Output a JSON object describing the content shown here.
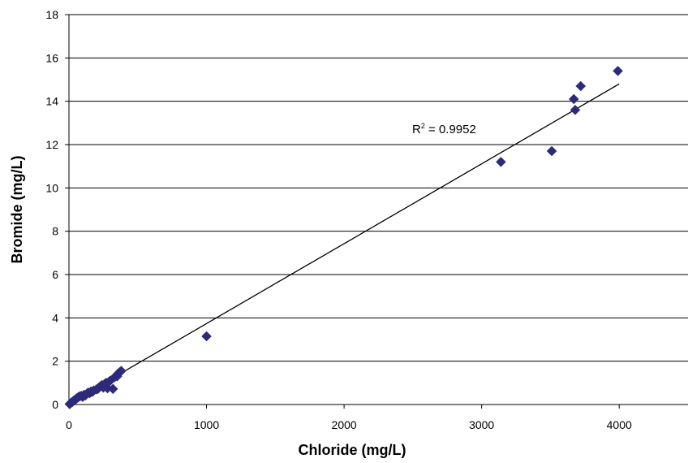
{
  "chart_data": {
    "type": "scatter",
    "title": "",
    "xlabel": "Chloride (mg/L)",
    "ylabel": "Bromide (mg/L)",
    "xlim": [
      0,
      4500
    ],
    "ylim": [
      0,
      18
    ],
    "xticks": [
      0,
      1000,
      2000,
      3000,
      4000
    ],
    "yticks": [
      0,
      2,
      4,
      6,
      8,
      10,
      12,
      14,
      16,
      18
    ],
    "grid": {
      "horizontal": true,
      "vertical": false
    },
    "legend": "none",
    "series": [
      {
        "marker": "diamond",
        "color": "#2E2A7A",
        "x": [
          5,
          10,
          15,
          20,
          25,
          30,
          35,
          40,
          45,
          50,
          55,
          60,
          65,
          70,
          80,
          90,
          100,
          110,
          120,
          130,
          140,
          150,
          160,
          170,
          180,
          200,
          210,
          220,
          230,
          240,
          250,
          260,
          270,
          280,
          290,
          300,
          320,
          330,
          350,
          360,
          370,
          380,
          1000,
          3140,
          3510,
          3670,
          3680,
          3720,
          3990
        ],
        "y": [
          0.02,
          0.05,
          0.08,
          0.1,
          0.12,
          0.15,
          0.18,
          0.2,
          0.22,
          0.25,
          0.28,
          0.3,
          0.32,
          0.35,
          0.38,
          0.4,
          0.35,
          0.45,
          0.42,
          0.5,
          0.55,
          0.52,
          0.6,
          0.58,
          0.65,
          0.7,
          0.72,
          0.8,
          0.85,
          0.9,
          0.78,
          0.95,
          1.0,
          0.75,
          1.05,
          1.1,
          0.72,
          1.25,
          1.3,
          1.45,
          1.5,
          1.55,
          3.15,
          11.2,
          11.7,
          14.1,
          13.6,
          14.7,
          15.4
        ]
      }
    ],
    "trendline": {
      "type": "linear",
      "x": [
        0,
        4000
      ],
      "y": [
        0.05,
        14.8
      ]
    },
    "annotation": {
      "base": "R",
      "sup": "2",
      "rest": " = 0.9952"
    }
  }
}
